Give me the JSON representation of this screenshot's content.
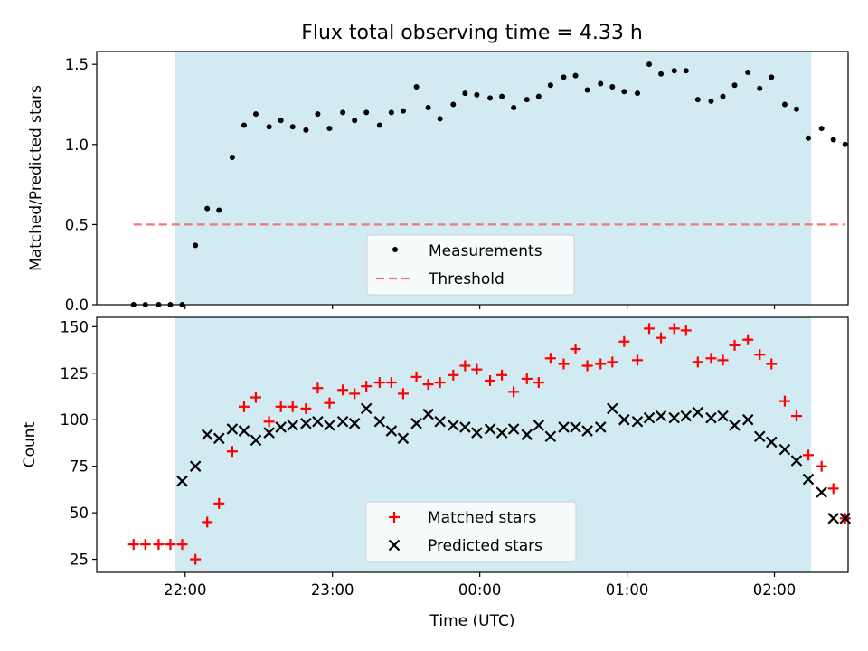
{
  "chart_data": [
    {
      "type": "scatter",
      "title": "Flux total observing time = 4.33 h",
      "xlabel": "",
      "ylabel": "Matched/Predicted stars",
      "ylim": [
        0,
        1.58
      ],
      "yticks": [
        0.0,
        0.5,
        1.0,
        1.5
      ],
      "ytick_labels": [
        "0.0",
        "0.5",
        "1.0",
        "1.5"
      ],
      "xlim": [
        21.4,
        26.5
      ],
      "xticks": [
        22.0,
        23.0,
        24.0,
        25.0,
        26.0
      ],
      "observing_window": [
        21.93,
        26.25
      ],
      "observing_window_color": "#add8e6",
      "series": [
        {
          "name": "Measurements",
          "marker": "dot",
          "color": "#000000",
          "x": [
            21.65,
            21.73,
            21.82,
            21.9,
            21.98,
            22.07,
            22.15,
            22.23,
            22.32,
            22.4,
            22.48,
            22.57,
            22.65,
            22.73,
            22.82,
            22.9,
            22.98,
            23.07,
            23.15,
            23.23,
            23.32,
            23.4,
            23.48,
            23.57,
            23.65,
            23.73,
            23.82,
            23.9,
            23.98,
            24.07,
            24.15,
            24.23,
            24.32,
            24.4,
            24.48,
            24.57,
            24.65,
            24.73,
            24.82,
            24.9,
            24.98,
            25.07,
            25.15,
            25.23,
            25.32,
            25.4,
            25.48,
            25.57,
            25.65,
            25.73,
            25.82,
            25.9,
            25.98,
            26.07,
            26.15,
            26.23,
            26.32,
            26.4,
            26.48
          ],
          "y": [
            0,
            0,
            0,
            0,
            0,
            0.37,
            0.6,
            0.59,
            0.92,
            1.12,
            1.19,
            1.11,
            1.15,
            1.11,
            1.09,
            1.19,
            1.1,
            1.2,
            1.15,
            1.2,
            1.12,
            1.2,
            1.21,
            1.36,
            1.23,
            1.16,
            1.25,
            1.32,
            1.31,
            1.29,
            1.3,
            1.23,
            1.28,
            1.3,
            1.37,
            1.42,
            1.43,
            1.34,
            1.38,
            1.36,
            1.33,
            1.32,
            1.5,
            1.44,
            1.46,
            1.46,
            1.28,
            1.27,
            1.3,
            1.37,
            1.45,
            1.35,
            1.42,
            1.25,
            1.22,
            1.04,
            1.1,
            1.03,
            1.0
          ]
        },
        {
          "name": "Threshold",
          "marker": "dashed-line",
          "color": "#f07878",
          "x": [
            21.65,
            26.48
          ],
          "y": [
            0.5,
            0.5
          ]
        }
      ],
      "legend": [
        "Measurements",
        "Threshold"
      ],
      "legend_position": "lower center"
    },
    {
      "type": "scatter",
      "title": "",
      "xlabel": "Time (UTC)",
      "ylabel": "Count",
      "ylim": [
        18,
        155
      ],
      "yticks": [
        25,
        50,
        75,
        100,
        125,
        150
      ],
      "ytick_labels": [
        "25",
        "50",
        "75",
        "100",
        "125",
        "150"
      ],
      "xlim": [
        21.4,
        26.5
      ],
      "xticks": [
        22.0,
        23.0,
        24.0,
        25.0,
        26.0
      ],
      "xtick_labels": [
        "22:00",
        "23:00",
        "00:00",
        "01:00",
        "02:00"
      ],
      "observing_window": [
        21.93,
        26.25
      ],
      "observing_window_color": "#add8e6",
      "series": [
        {
          "name": "Matched stars",
          "marker": "plus",
          "color": "#ff0000",
          "x": [
            21.65,
            21.73,
            21.82,
            21.9,
            21.98,
            22.07,
            22.15,
            22.23,
            22.32,
            22.4,
            22.48,
            22.57,
            22.65,
            22.73,
            22.82,
            22.9,
            22.98,
            23.07,
            23.15,
            23.23,
            23.32,
            23.4,
            23.48,
            23.57,
            23.65,
            23.73,
            23.82,
            23.9,
            23.98,
            24.07,
            24.15,
            24.23,
            24.32,
            24.4,
            24.48,
            24.57,
            24.65,
            24.73,
            24.82,
            24.9,
            24.98,
            25.07,
            25.15,
            25.23,
            25.32,
            25.4,
            25.48,
            25.57,
            25.65,
            25.73,
            25.82,
            25.9,
            25.98,
            26.07,
            26.15,
            26.23,
            26.32,
            26.4,
            26.48
          ],
          "y": [
            33,
            33,
            33,
            33,
            33,
            25,
            45,
            55,
            83,
            107,
            112,
            99,
            107,
            107,
            106,
            117,
            109,
            116,
            114,
            118,
            120,
            120,
            114,
            123,
            119,
            120,
            124,
            129,
            127,
            121,
            124,
            115,
            122,
            120,
            133,
            130,
            138,
            129,
            130,
            131,
            142,
            132,
            149,
            144,
            149,
            148,
            131,
            133,
            132,
            140,
            143,
            135,
            130,
            110,
            102,
            81,
            75,
            63,
            47
          ]
        },
        {
          "name": "Predicted stars",
          "marker": "x",
          "color": "#000000",
          "x": [
            21.98,
            22.07,
            22.15,
            22.23,
            22.32,
            22.4,
            22.48,
            22.57,
            22.65,
            22.73,
            22.82,
            22.9,
            22.98,
            23.07,
            23.15,
            23.23,
            23.32,
            23.4,
            23.48,
            23.57,
            23.65,
            23.73,
            23.82,
            23.9,
            23.98,
            24.07,
            24.15,
            24.23,
            24.32,
            24.4,
            24.48,
            24.57,
            24.65,
            24.73,
            24.82,
            24.9,
            24.98,
            25.07,
            25.15,
            25.23,
            25.32,
            25.4,
            25.48,
            25.57,
            25.65,
            25.73,
            25.82,
            25.9,
            25.98,
            26.07,
            26.15,
            26.23,
            26.32,
            26.4,
            26.48
          ],
          "y": [
            67,
            75,
            92,
            90,
            95,
            94,
            89,
            93,
            96,
            97,
            98,
            99,
            97,
            99,
            98,
            106,
            99,
            94,
            90,
            98,
            103,
            99,
            97,
            96,
            93,
            95,
            93,
            95,
            92,
            97,
            91,
            96,
            96,
            94,
            96,
            106,
            100,
            99,
            101,
            102,
            101,
            102,
            104,
            101,
            102,
            97,
            100,
            91,
            88,
            84,
            78,
            68,
            61,
            47,
            47
          ]
        }
      ],
      "legend": [
        "Matched stars",
        "Predicted stars"
      ],
      "legend_position": "lower center"
    }
  ]
}
